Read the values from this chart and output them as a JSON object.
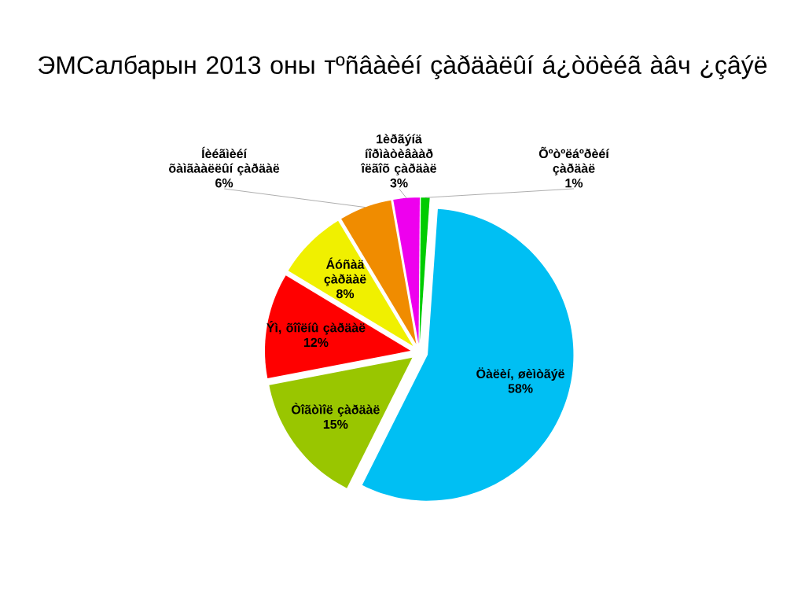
{
  "chart_data": {
    "type": "pie",
    "title": "ЭМСалбарын 2013 оны тºñâàèéí çàðäàëûí á¿òöèéã àâч ¿çâýë",
    "categories": [
      "1èðãýíä íîðìàòèâààð îëãîõ çàðäàë",
      "Õºòºëáºðèéí çàðäàë",
      "Öàëèí, øèìòãýë",
      "Òîãòìîë çàðäàë",
      "Ýì, õîîëíû çàðäàë",
      "Áóñàä çàðäàë",
      "Íèéãìèéí õàìãààëëûí çàðäàë"
    ],
    "values": [
      3,
      1,
      58,
      15,
      12,
      8,
      6
    ],
    "value_labels": [
      "3%",
      "1%",
      "58%",
      "15%",
      "12%",
      "8%",
      "6%"
    ],
    "colors": [
      "#ee00ee",
      "#00cc00",
      "#00bff3",
      "#99c600",
      "#ff0000",
      "#f0f000",
      "#f08c00"
    ]
  }
}
